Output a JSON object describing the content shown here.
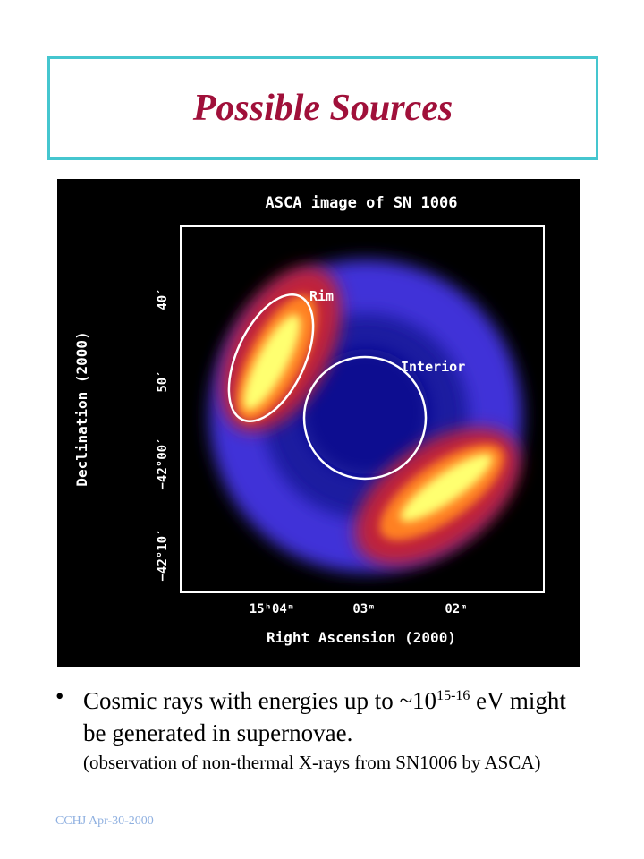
{
  "header": {
    "title": "Possible Sources"
  },
  "figure": {
    "title": "ASCA image of SN 1006",
    "labels": {
      "rim": "Rim",
      "interior": "Interior"
    },
    "y_axis": {
      "label": "Declination (2000)",
      "ticks": [
        "40′",
        "50′",
        "−42°00′",
        "−42°10′"
      ]
    },
    "x_axis": {
      "label": "Right Ascension (2000)",
      "ticks": [
        "15ʰ04ᵐ",
        "03ᵐ",
        "02ᵐ"
      ]
    }
  },
  "bullet": {
    "text_before": "Cosmic rays with energies up to ~10",
    "exponent": "15-16",
    "text_after": " eV might be generated in supernovae.",
    "note": "(observation of non-thermal X-rays from SN1006 by ASCA)"
  },
  "footer": "CCHJ Apr-30-2000"
}
